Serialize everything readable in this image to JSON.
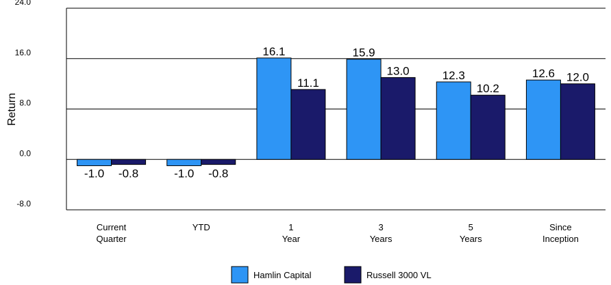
{
  "chart_data": {
    "type": "bar",
    "ylabel": "Return",
    "ylim": [
      -8,
      24
    ],
    "yticks": [
      "-8.0",
      "0.0",
      "8.0",
      "16.0",
      "24.0"
    ],
    "ytick_values": [
      -8,
      0,
      8,
      16,
      24
    ],
    "categories": [
      [
        "Current",
        "Quarter"
      ],
      [
        "YTD"
      ],
      [
        "1",
        "Year"
      ],
      [
        "3",
        "Years"
      ],
      [
        "5",
        "Years"
      ],
      [
        "Since",
        "Inception"
      ]
    ],
    "series": [
      {
        "name": "Hamlin Capital",
        "color": "#2e95f5",
        "values": [
          -1.0,
          -1.0,
          16.1,
          15.9,
          12.3,
          12.6
        ],
        "labels": [
          "-1.0",
          "-1.0",
          "16.1",
          "15.9",
          "12.3",
          "12.6"
        ]
      },
      {
        "name": "Russell 3000 VL",
        "color": "#1a1a6a",
        "values": [
          -0.8,
          -0.8,
          11.1,
          13.0,
          10.2,
          12.0
        ],
        "labels": [
          "-0.8",
          "-0.8",
          "11.1",
          "13.0",
          "10.2",
          "12.0"
        ]
      }
    ],
    "grid": "horizontal at y ticks",
    "legend": "bottom-center"
  }
}
